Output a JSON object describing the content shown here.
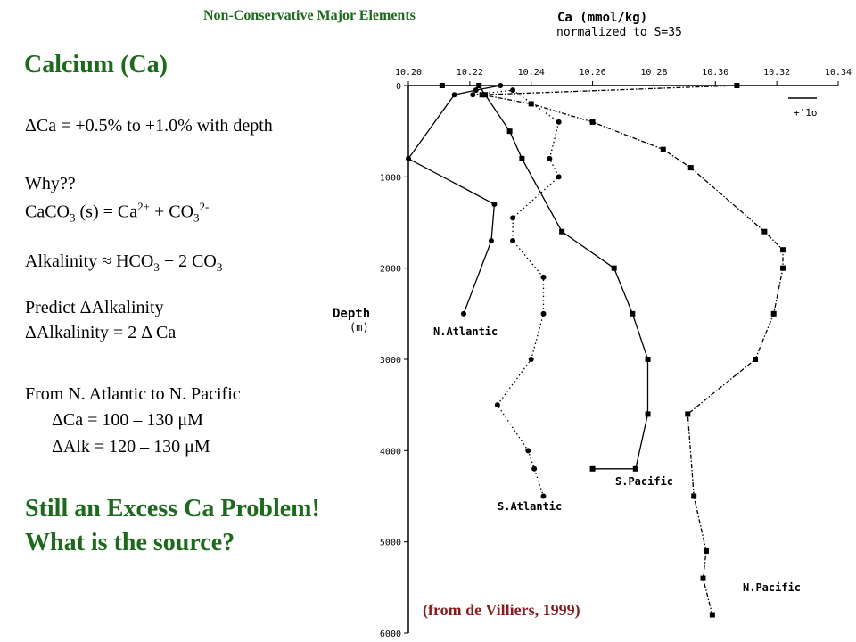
{
  "slide": {
    "header": "Non-Conservative Major Elements",
    "title": "Calcium (Ca)",
    "delta_ca": "ΔCa = +0.5% to +1.0% with depth",
    "why": "Why??",
    "reaction": {
      "p1": "CaCO",
      "s1": "3",
      "p2": " (s) = Ca",
      "s2": "2+",
      "p3": " + CO",
      "s3": "3",
      "s4": "2-"
    },
    "alkalinity": {
      "p1": "Alkalinity ≈ HCO",
      "s1": "3",
      "p2": " + 2 CO",
      "s2": "3"
    },
    "predict": "Predict ΔAlkalinity",
    "alk_eq": "ΔAlkalinity = 2 Δ Ca",
    "from": "From N. Atlantic to N. Pacific",
    "dca_range": "ΔCa = 100 – 130 μM",
    "dalk_range": "ΔAlk = 120 – 130 μM",
    "excess1": "Still an Excess Ca Problem!",
    "excess2": "What is the source?",
    "citation": "(from de Villiers, 1999)"
  },
  "chart_data": {
    "type": "line",
    "title": "Ca  (mmol/kg)",
    "subtitle": "normalized to S=35",
    "ylabel": "Depth",
    "yunit": "(m)",
    "xlim": [
      10.2,
      10.34
    ],
    "ylim": [
      0,
      6000
    ],
    "xticks": [
      "10.20",
      "10.22",
      "10.24",
      "10.26",
      "10.28",
      "10.30",
      "10.32",
      "10.34"
    ],
    "yticks": [
      "0",
      "1000",
      "2000",
      "3000",
      "4000",
      "5000",
      "6000"
    ],
    "errorbar_label": "+'1σ",
    "series": [
      {
        "name": "N.Atlantic",
        "style": "solid",
        "marker": "circle",
        "x": [
          10.23,
          10.222,
          10.215,
          10.2,
          10.228,
          10.227,
          10.218
        ],
        "y": [
          0,
          50,
          100,
          800,
          1300,
          1700,
          2500
        ]
      },
      {
        "name": "S.Pacific",
        "style": "solid",
        "marker": "square",
        "x": [
          10.211,
          10.223,
          10.225,
          10.233,
          10.237,
          10.25,
          10.267,
          10.273,
          10.278,
          10.278,
          10.274,
          10.26
        ],
        "y": [
          0,
          0,
          100,
          500,
          800,
          1600,
          2000,
          2500,
          3000,
          3600,
          4200,
          4200
        ]
      },
      {
        "name": "S.Atlantic",
        "style": "dotted",
        "marker": "circle",
        "x": [
          10.221,
          10.234,
          10.249,
          10.246,
          10.249,
          10.234,
          10.234,
          10.244,
          10.244,
          10.24,
          10.229,
          10.239,
          10.241,
          10.244
        ],
        "y": [
          100,
          50,
          400,
          800,
          1000,
          1450,
          1700,
          2100,
          2500,
          3000,
          3500,
          4000,
          4200,
          4500
        ]
      },
      {
        "name": "N.Pacific",
        "style": "dashdot",
        "marker": "square",
        "x": [
          10.307,
          10.224,
          10.24,
          10.26,
          10.283,
          10.292,
          10.316,
          10.322,
          10.322,
          10.319,
          10.313,
          10.291,
          10.293,
          10.297,
          10.296,
          10.299
        ],
        "y": [
          0,
          100,
          200,
          400,
          700,
          900,
          1600,
          1800,
          2000,
          2500,
          3000,
          3600,
          4500,
          5100,
          5400,
          5800
        ]
      }
    ]
  }
}
